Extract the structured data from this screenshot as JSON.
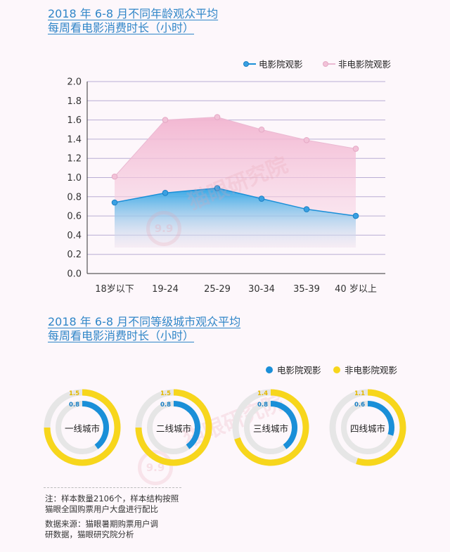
{
  "colors": {
    "title": "#2f86c8",
    "cinema": "#1a8fd8",
    "non_cinema_line": "#eab9d2",
    "non_cinema_marker": "#f2c2d8",
    "ring_yellow": "#f7d61c",
    "ring_track": "#e6e6e6"
  },
  "chart_data": [
    {
      "type": "area",
      "title": "2018 年 6-8 月不同年龄观众平均每周看电影消费时长（小时）",
      "title_lines": [
        "2018 年 6-8 月不同年龄观众平均",
        "每周看电影消费时长（小时）"
      ],
      "categories": [
        "18岁以下",
        "19-24",
        "25-29",
        "30-34",
        "35-39",
        "40 岁以上"
      ],
      "series": [
        {
          "name": "电影院观影",
          "values": [
            0.74,
            0.84,
            0.89,
            0.78,
            0.67,
            0.6
          ]
        },
        {
          "name": "非电影院观影",
          "values": [
            1.01,
            1.6,
            1.63,
            1.5,
            1.39,
            1.3
          ]
        }
      ],
      "ylim": [
        0,
        2.0
      ],
      "yticks": [
        "0.0",
        "0.2",
        "0.4",
        "0.6",
        "0.8",
        "1.0",
        "1.2",
        "1.4",
        "1.6",
        "1.8",
        "2.0"
      ],
      "grid": true,
      "legend": "top-right"
    },
    {
      "type": "donut",
      "title": "2018 年 6-8 月不同等级城市观众平均每周看电影消费时长（小时）",
      "title_lines": [
        "2018 年 6-8 月不同等级城市观众平均",
        "每周看电影消费时长（小时）"
      ],
      "legend": "top-right",
      "series_names": [
        "电影院观影",
        "非电影院观影"
      ],
      "categories": [
        {
          "name": "一线城市",
          "cinema": 0.8,
          "non_cinema": 1.5,
          "cinema_label": "0.8",
          "non_cinema_label": "1.5"
        },
        {
          "name": "二线城市",
          "cinema": 0.8,
          "non_cinema": 1.5,
          "cinema_label": "0.8",
          "non_cinema_label": "1.5"
        },
        {
          "name": "三线城市",
          "cinema": 0.8,
          "non_cinema": 1.4,
          "cinema_label": "0.8",
          "non_cinema_label": "1.4"
        },
        {
          "name": "四线城市",
          "cinema": 0.6,
          "non_cinema": 1.1,
          "cinema_label": "0.6",
          "non_cinema_label": "1.1"
        }
      ],
      "scale_max": 2.0
    }
  ],
  "notes": {
    "sample": [
      "注：样本数量2106个，样本结构按照",
      "猫眼全国购票用户大盘进行配比"
    ],
    "source": [
      "数据来源：猫眼暑期购票用户调",
      "研数据，猫眼研究院分析"
    ]
  },
  "watermark": {
    "text": "猫眼研究院",
    "logo": "9.9"
  }
}
